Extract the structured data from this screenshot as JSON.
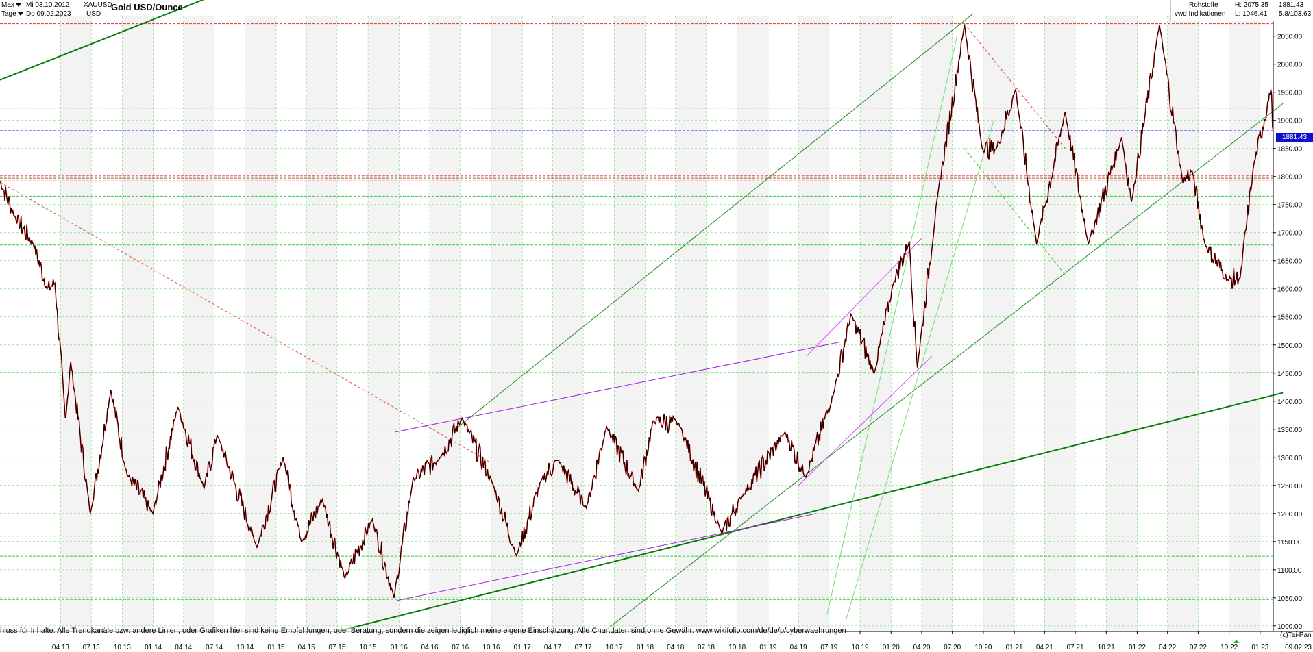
{
  "header": {
    "range_label": "Max",
    "start_date": "Mi 03.10.2012",
    "interval_label": "Tage",
    "end_date": "Do 09.02.2023",
    "symbol": "XAUUSD",
    "currency": "USD",
    "title": "Gold USD/Ounce",
    "category": "Rohstoffe",
    "source": "vwd Indikationen",
    "high": "H: 2075.35",
    "low": "L: 1046.41",
    "last": "1881.43",
    "range": "5.8/103.63"
  },
  "price_tag": "1881.43",
  "disclaimer": "hluss für Inhalte: Alle Trendkanäle bzw. andere Linien, oder Grafiken hier sind keine Empfehlungen, oder Beratung, sondern die zeigen lediglich meine eigene Einschätzung. Alle Chartdaten sind ohne Gewähr.  www.wikifolio.com/de/de/p/cyberwaehrungen",
  "copyright": "(c)Tai-Pan",
  "chart_data": {
    "type": "line",
    "title": "Gold USD/Ounce",
    "y_axis_ticks": [
      1000,
      1050,
      1100,
      1150,
      1200,
      1250,
      1300,
      1350,
      1400,
      1450,
      1500,
      1550,
      1600,
      1650,
      1700,
      1750,
      1800,
      1850,
      1900,
      1950,
      2000,
      2050
    ],
    "ylim": [
      990,
      2085
    ],
    "x_axis_ticks": [
      "04 13",
      "07 13",
      "10 13",
      "01 14",
      "04 14",
      "07 14",
      "10 14",
      "01 15",
      "04 15",
      "07 15",
      "10 15",
      "01 16",
      "04 16",
      "07 16",
      "10 16",
      "01 17",
      "04 17",
      "07 17",
      "10 17",
      "01 18",
      "04 18",
      "07 18",
      "10 18",
      "01 19",
      "04 19",
      "07 19",
      "10 19",
      "01 20",
      "04 20",
      "07 20",
      "10 20",
      "01 21",
      "04 21",
      "07 21",
      "10 21",
      "01 22",
      "04 22",
      "07 22",
      "10 22",
      "01 23"
    ],
    "x_axis_end_label": "09.02.23",
    "xlim": [
      "2012-10-03",
      "2023-02-09"
    ],
    "grid": true,
    "series": [
      {
        "values": [
          [
            "2012-10-03",
            1792
          ],
          [
            "2012-11-15",
            1730
          ],
          [
            "2013-01-10",
            1680
          ],
          [
            "2013-02-20",
            1600
          ],
          [
            "2013-03-15",
            1610
          ],
          [
            "2013-04-15",
            1370
          ],
          [
            "2013-05-01",
            1470
          ],
          [
            "2013-06-28",
            1200
          ],
          [
            "2013-08-28",
            1420
          ],
          [
            "2013-10-15",
            1270
          ],
          [
            "2013-12-31",
            1200
          ],
          [
            "2014-03-15",
            1390
          ],
          [
            "2014-06-01",
            1245
          ],
          [
            "2014-07-10",
            1340
          ],
          [
            "2014-11-05",
            1140
          ],
          [
            "2015-01-22",
            1300
          ],
          [
            "2015-03-17",
            1150
          ],
          [
            "2015-05-18",
            1225
          ],
          [
            "2015-07-24",
            1085
          ],
          [
            "2015-10-14",
            1190
          ],
          [
            "2015-12-17",
            1050
          ],
          [
            "2016-02-11",
            1260
          ],
          [
            "2016-05-02",
            1300
          ],
          [
            "2016-07-06",
            1370
          ],
          [
            "2016-10-07",
            1250
          ],
          [
            "2016-12-15",
            1125
          ],
          [
            "2017-02-27",
            1260
          ],
          [
            "2017-04-17",
            1295
          ],
          [
            "2017-07-10",
            1210
          ],
          [
            "2017-09-08",
            1355
          ],
          [
            "2017-12-12",
            1240
          ],
          [
            "2018-01-25",
            1365
          ],
          [
            "2018-04-11",
            1360
          ],
          [
            "2018-08-16",
            1165
          ],
          [
            "2018-10-15",
            1230
          ],
          [
            "2019-02-20",
            1345
          ],
          [
            "2019-04-23",
            1265
          ],
          [
            "2019-07-15",
            1415
          ],
          [
            "2019-09-04",
            1555
          ],
          [
            "2019-11-12",
            1450
          ],
          [
            "2020-01-08",
            1610
          ],
          [
            "2020-02-24",
            1685
          ],
          [
            "2020-03-19",
            1460
          ],
          [
            "2020-05-18",
            1765
          ],
          [
            "2020-08-06",
            2070
          ],
          [
            "2020-09-28",
            1850
          ],
          [
            "2020-11-09",
            1850
          ],
          [
            "2021-01-05",
            1955
          ],
          [
            "2021-03-08",
            1680
          ],
          [
            "2021-06-01",
            1915
          ],
          [
            "2021-08-09",
            1680
          ],
          [
            "2021-11-16",
            1870
          ],
          [
            "2021-12-15",
            1755
          ],
          [
            "2022-03-08",
            2070
          ],
          [
            "2022-05-16",
            1790
          ],
          [
            "2022-06-13",
            1810
          ],
          [
            "2022-07-21",
            1680
          ],
          [
            "2022-09-28",
            1615
          ],
          [
            "2022-11-03",
            1620
          ],
          [
            "2022-12-13",
            1820
          ],
          [
            "2023-02-02",
            1955
          ],
          [
            "2023-02-09",
            1881
          ]
        ]
      }
    ],
    "horizontal_lines": [
      {
        "y": 1881.43,
        "color": "#1a1aff",
        "style": "dashed"
      },
      {
        "y": 2072,
        "color": "#e03030",
        "style": "dashed"
      },
      {
        "y": 1922,
        "color": "#e03030",
        "style": "dashed"
      },
      {
        "y": 1802,
        "color": "#e03030",
        "style": "dashed"
      },
      {
        "y": 1797,
        "color": "#e03030",
        "style": "dashed"
      },
      {
        "y": 1792,
        "color": "#e03030",
        "style": "dashed"
      },
      {
        "y": 1765,
        "color": "#33cc33",
        "style": "dashed"
      },
      {
        "y": 1678,
        "color": "#33cc33",
        "style": "dashed"
      },
      {
        "y": 1451,
        "color": "#33cc33",
        "style": "dashed"
      },
      {
        "y": 1160,
        "color": "#33cc33",
        "style": "dashed"
      },
      {
        "y": 1124,
        "color": "#33cc33",
        "style": "dashed"
      },
      {
        "y": 1047,
        "color": "#33cc33",
        "style": "dashed"
      }
    ],
    "trend_lines": [
      {
        "from": [
          "2012-10-03",
          1972
        ],
        "to": [
          "2015-03-01",
          2180
        ],
        "color": "#0a7a0a",
        "width": 2
      },
      {
        "from": [
          "2015-07-01",
          990
        ],
        "to": [
          "2023-03-10",
          1415
        ],
        "color": "#0a7a0a",
        "width": 2
      },
      {
        "from": [
          "2016-06-10",
          1347
        ],
        "to": [
          "2020-09-01",
          2090
        ],
        "color": "#1a8a1a",
        "width": 1
      },
      {
        "from": [
          "2017-09-01",
          990
        ],
        "to": [
          "2023-03-10",
          1930
        ],
        "color": "#1a8a1a",
        "width": 1
      },
      {
        "from": [
          "2019-06-25",
          1020
        ],
        "to": [
          "2020-07-15",
          2050
        ],
        "color": "#6fe06f",
        "width": 1
      },
      {
        "from": [
          "2019-08-20",
          1010
        ],
        "to": [
          "2020-11-01",
          1900
        ],
        "color": "#6fe06f",
        "width": 1
      },
      {
        "from": [
          "2015-12-20",
          1345
        ],
        "to": [
          "2019-08-01",
          1505
        ],
        "color": "#a020e0",
        "width": 1
      },
      {
        "from": [
          "2015-12-25",
          1045
        ],
        "to": [
          "2019-05-25",
          1200
        ],
        "color": "#a020e0",
        "width": 1
      },
      {
        "from": [
          "2019-04-25",
          1480
        ],
        "to": [
          "2020-04-01",
          1690
        ],
        "color": "#e040ff",
        "width": 1
      },
      {
        "from": [
          "2019-04-01",
          1250
        ],
        "to": [
          "2020-05-01",
          1480
        ],
        "color": "#e040ff",
        "width": 1
      },
      {
        "from": [
          "2012-10-03",
          1790
        ],
        "to": [
          "2016-10-01",
          1290
        ],
        "color": "#e05050",
        "width": 1,
        "style": "dashed"
      },
      {
        "from": [
          "2020-08-06",
          2072
        ],
        "to": [
          "2021-06-01",
          1850
        ],
        "color": "#e03030",
        "width": 1,
        "style": "dashed"
      },
      {
        "from": [
          "2020-08-06",
          1850
        ],
        "to": [
          "2021-06-01",
          1625
        ],
        "color": "#33cc33",
        "width": 1,
        "style": "dashed"
      }
    ]
  }
}
